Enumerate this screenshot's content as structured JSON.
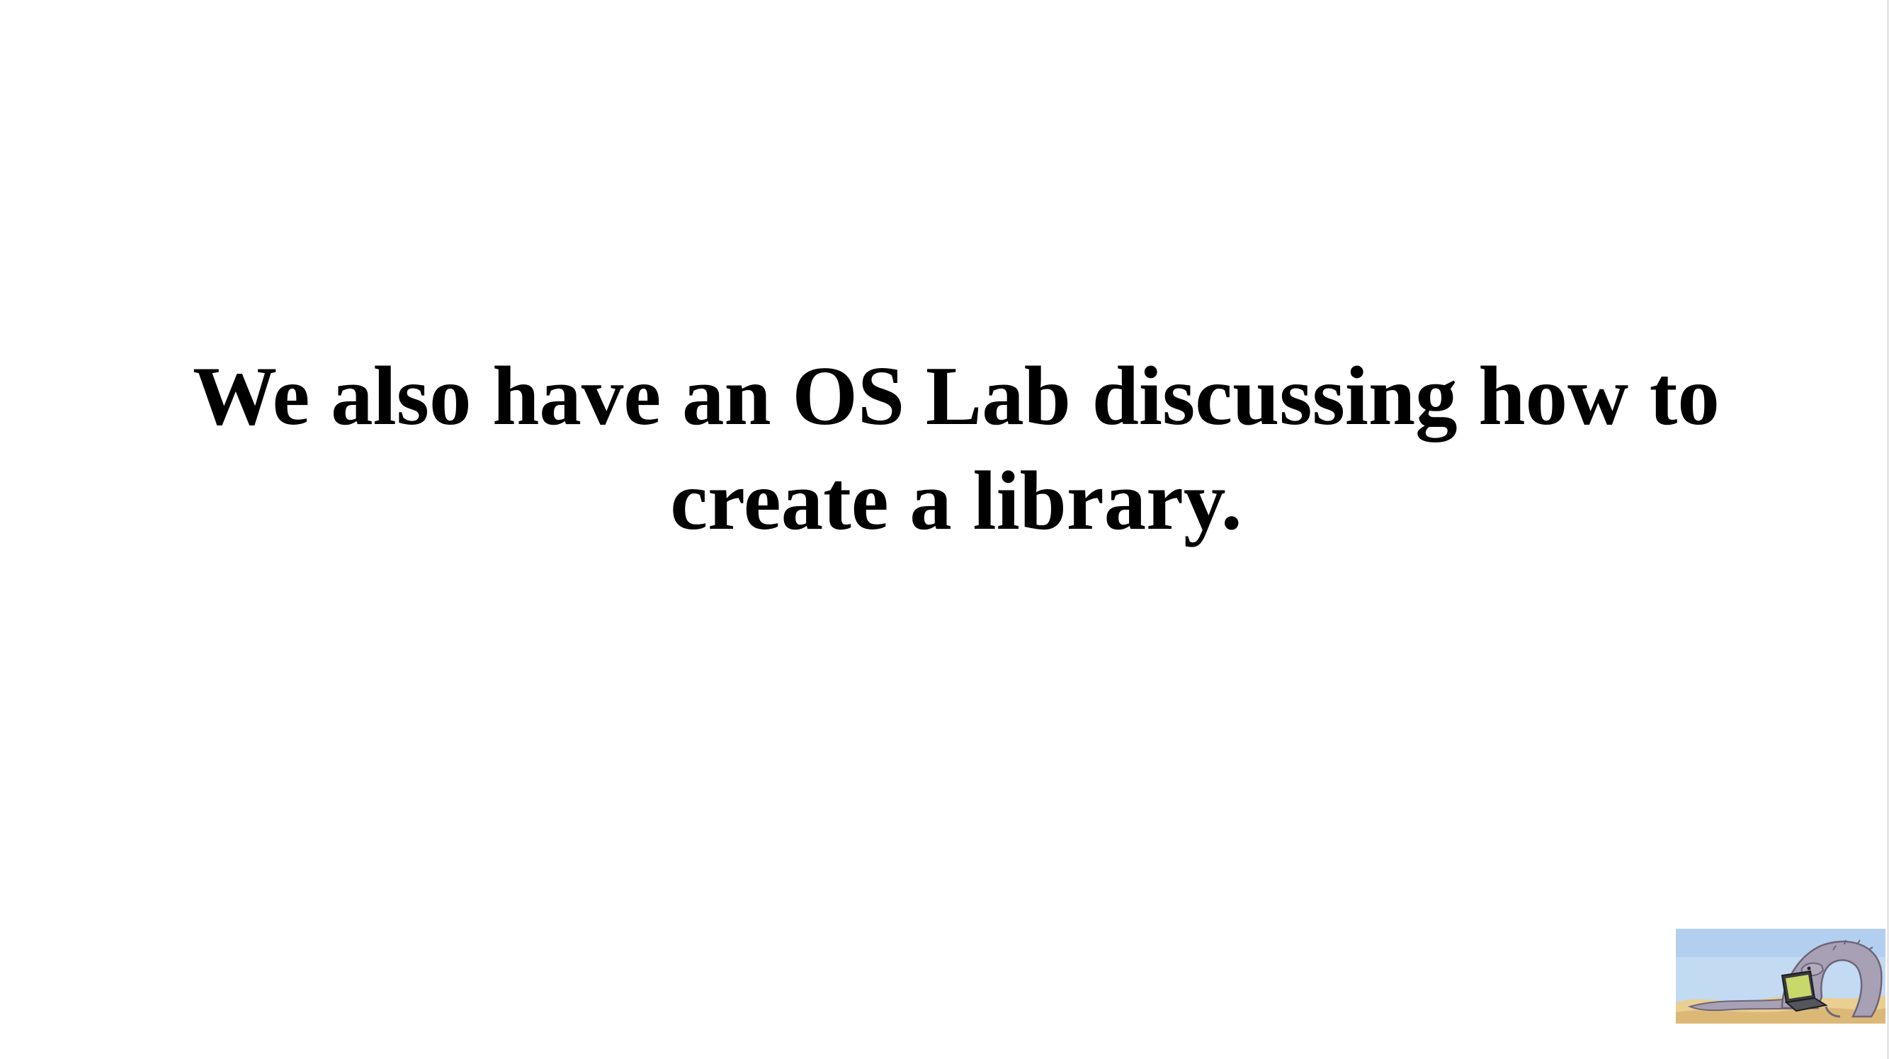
{
  "slide": {
    "text": "We also have an OS Lab discussing how to create a library."
  },
  "mascot": {
    "icon": "dinosaur-with-laptop-icon"
  },
  "colors": {
    "background": "#ffffff",
    "text": "#000000",
    "sky": "#c2daf2",
    "sand": "#e9cf92",
    "dinosaur": "#a8a0b4"
  }
}
